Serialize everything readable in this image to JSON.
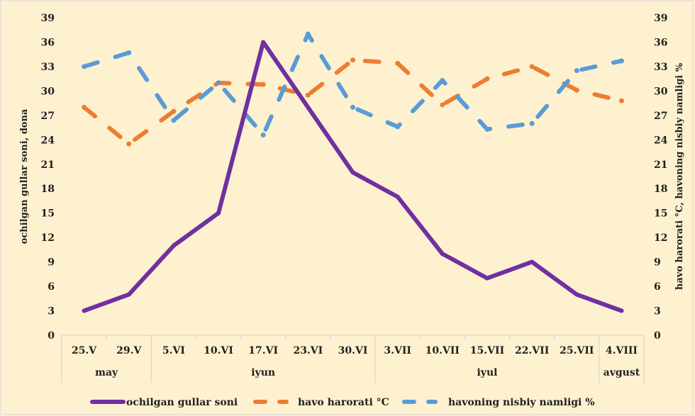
{
  "chart_data": {
    "type": "line",
    "title": "",
    "categories": [
      "25.V",
      "29.V",
      "5.VI",
      "10.VI",
      "17.VI",
      "23.VI",
      "30.VI",
      "3.VII",
      "10.VII",
      "15.VII",
      "22.VII",
      "25.VII",
      "4.VIII"
    ],
    "groups": [
      {
        "label": "may",
        "span": 2
      },
      {
        "label": "iyun",
        "span": 5
      },
      {
        "label": "iyul",
        "span": 5
      },
      {
        "label": "avgust",
        "span": 1
      }
    ],
    "y_ticks": [
      "0",
      "3",
      "6",
      "9",
      "12",
      "15",
      "18",
      "21",
      "24",
      "27",
      "30",
      "33",
      "36",
      "39"
    ],
    "y_right_ticks": [
      "0",
      "3",
      "6",
      "9",
      "12",
      "15",
      "18",
      "21",
      "24",
      "27",
      "30",
      "33",
      "36",
      "39"
    ],
    "ylim": [
      0,
      39
    ],
    "ylabel": "ochilgan gullar soni, dona",
    "ylabel_right": "havo harorati °C, havoning nisbiy namligi %",
    "series": [
      {
        "name": "ochilgan gullar soni",
        "color": "#7030a0",
        "style": "solid",
        "values": [
          3,
          5,
          11,
          15,
          36,
          28,
          20,
          17,
          10,
          7,
          9,
          5,
          3
        ]
      },
      {
        "name": "havo harorati °C",
        "color": "#ed7d31",
        "style": "dashed",
        "values": [
          28,
          23.5,
          27.5,
          31,
          30.8,
          29.5,
          33.8,
          33.4,
          28.3,
          31.5,
          33,
          30.1,
          28.8
        ]
      },
      {
        "name": "havoning nisbiy namligi %",
        "color": "#5b9bd5",
        "style": "dashed",
        "values": [
          33,
          34.7,
          26.4,
          31,
          24.6,
          37,
          28,
          25.6,
          31.3,
          25.3,
          26,
          32.5,
          33.7
        ]
      }
    ],
    "legend_position": "bottom",
    "grid": false
  }
}
